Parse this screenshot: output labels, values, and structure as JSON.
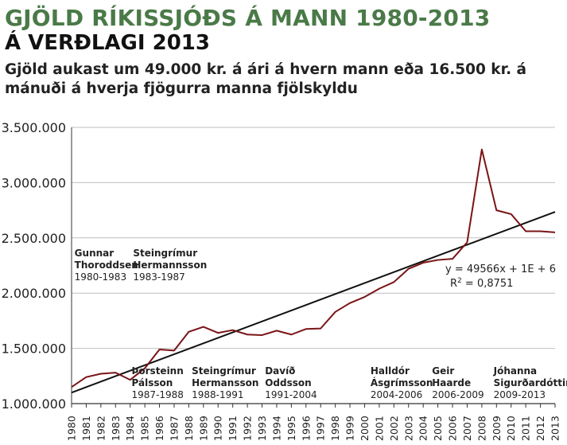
{
  "header": {
    "title_line1": "GJÖLD RÍKISSJÓÐS Á MANN 1980-2013",
    "title_line2": "Á VERÐLAGI 2013",
    "subtitle": "Gjöld aukast um 49.000 kr. á ári á hvern mann eða 16.500 kr. á mánuði á hverja fjögurra manna fjölskyldu"
  },
  "colors": {
    "title": "#4a7a47",
    "series": "#7a1416",
    "trend": "#111111",
    "grid": "#bfbfbf"
  },
  "chart_data": {
    "type": "line",
    "x": [
      1980,
      1981,
      1982,
      1983,
      1984,
      1985,
      1986,
      1987,
      1988,
      1989,
      1990,
      1991,
      1992,
      1993,
      1994,
      1995,
      1996,
      1997,
      1998,
      1999,
      2000,
      2001,
      2002,
      2003,
      2004,
      2005,
      2006,
      2007,
      2008,
      2009,
      2010,
      2011,
      2012,
      2013
    ],
    "x_tick_labels": [
      "1980",
      "1981",
      "1982",
      "1983",
      "1984",
      "1985",
      "1986",
      "1987",
      "1988",
      "1989",
      "1990",
      "1991",
      "1992",
      "1993",
      "1994",
      "1995",
      "1996",
      "1997",
      "1998",
      "1999",
      "2000",
      "2001",
      "2002",
      "2003",
      "2004",
      "2005",
      "2006",
      "2007",
      "2008",
      "2009",
      "2010",
      "2011",
      "2012",
      "2013"
    ],
    "series": [
      {
        "values": [
          1150000,
          1240000,
          1270000,
          1280000,
          1215000,
          1320000,
          1490000,
          1480000,
          1650000,
          1695000,
          1640000,
          1665000,
          1625000,
          1620000,
          1660000,
          1625000,
          1675000,
          1680000,
          1830000,
          1910000,
          1965000,
          2040000,
          2100000,
          2220000,
          2275000,
          2300000,
          2310000,
          2460000,
          3300000,
          2750000,
          2715000,
          2560000,
          2560000,
          2550000
        ]
      }
    ],
    "trendline": {
      "slope": 49566,
      "intercept": 1050000
    },
    "equation": "y = 49566x + 1E + 6",
    "r2_prefix": "R",
    "r2_sup": "2",
    "r2_suffix": " = 0,8751",
    "y_ticks": [
      1000000,
      1500000,
      2000000,
      2500000,
      3000000,
      3500000
    ],
    "y_tick_labels": [
      "1.000.000",
      "1.500.000",
      "2.000.000",
      "2.500.000",
      "3.000.000",
      "3.500.000"
    ],
    "ylim": [
      1000000,
      3500000
    ],
    "grid": "horizontal",
    "annotations_top": [
      {
        "name1": "Gunnar",
        "name2": "Thoroddsen",
        "years": "1980-1983",
        "x": 1980.2
      },
      {
        "name1": "Steingrímur",
        "name2": "Hermannsson",
        "years": "1983-1987",
        "x": 1984.2
      }
    ],
    "annotations_bottom": [
      {
        "name1": "Þorsteinn",
        "name2": "Pálsson",
        "years": "1987-1988",
        "x": 1984.1
      },
      {
        "name1": "Steingrímur",
        "name2": "Hermansson",
        "years": "1988-1991",
        "x": 1988.2
      },
      {
        "name1": "Davíð",
        "name2": "Oddsson",
        "years": "1991-2004",
        "x": 1993.2
      },
      {
        "name1": "Halldór",
        "name2": "Ásgrímsson",
        "years": "2004-2006",
        "x": 2000.4
      },
      {
        "name1": "Geir",
        "name2": "Haarde",
        "years": "2006-2009",
        "x": 2004.6
      },
      {
        "name1": "Jóhanna",
        "name2": "Sigurðardóttir",
        "years": "2009-2013",
        "x": 2008.8
      }
    ]
  }
}
